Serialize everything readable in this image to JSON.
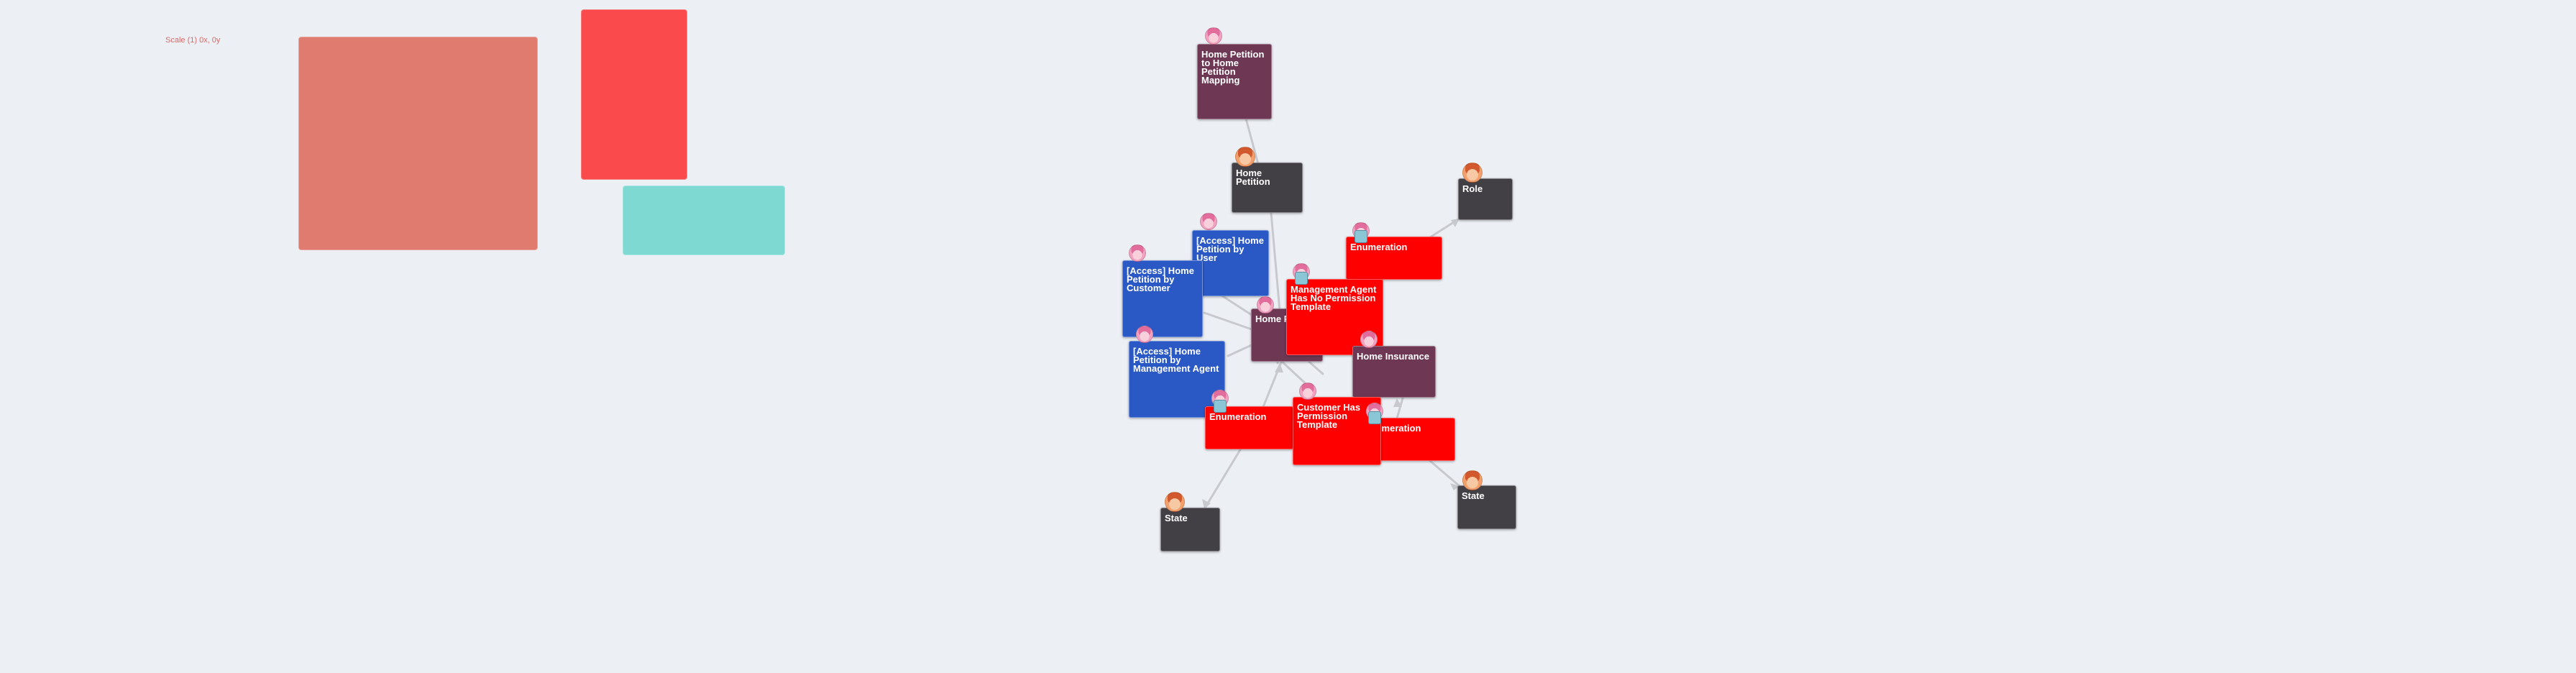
{
  "scale_label": "Scale (1) 0x, 0y",
  "nodes": {
    "mapping": "Home Petition to Home Petition Mapping",
    "home_petition_top": "Home Petition",
    "role": "Role",
    "access_user": "[Access] Home Petition by User",
    "access_customer": "[Access] Home Petition by Customer",
    "home_petition_center": "Home Petition",
    "enum_top": "Enumeration",
    "mgmt_template": "Management Agent Has No Permission Template",
    "home_insurance": "Home Insurance",
    "access_mgmt": "[Access] Home Petition by Management Agent",
    "enum_left": "Enumeration",
    "customer_template": "Customer Has Permission Template",
    "enum_right": "Enumeration",
    "state_left": "State",
    "state_right": "State"
  },
  "colors": {
    "background": "#eceff4",
    "dark_node": "#434045",
    "plum_node": "#6e3854",
    "blue_node": "#2a59c6",
    "red_node": "#ff0000",
    "salmon_block": "#e07b70",
    "red_block": "#fb4a4c",
    "teal_block": "#7fd9d3",
    "edge": "#c8c9cf"
  }
}
